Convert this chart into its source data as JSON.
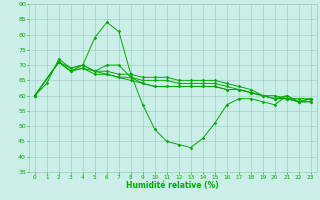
{
  "background_color": "#cceee8",
  "grid_color": "#99ccbb",
  "line_color": "#00aa00",
  "xlabel": "Humidité relative (%)",
  "xlabel_color": "#00aa00",
  "ylim": [
    35,
    90
  ],
  "xlim": [
    -0.5,
    23.5
  ],
  "yticks": [
    35,
    40,
    45,
    50,
    55,
    60,
    65,
    70,
    75,
    80,
    85,
    90
  ],
  "xticks": [
    0,
    1,
    2,
    3,
    4,
    5,
    6,
    7,
    8,
    9,
    10,
    11,
    12,
    13,
    14,
    15,
    16,
    17,
    18,
    19,
    20,
    21,
    22,
    23
  ],
  "line1": {
    "x": [
      0,
      1,
      2,
      3,
      4,
      5,
      6,
      7,
      8,
      9,
      10,
      11,
      12,
      13,
      14,
      15,
      16,
      17,
      18,
      19,
      20,
      21,
      22,
      23
    ],
    "y": [
      60,
      64,
      72,
      69,
      70,
      79,
      84,
      81,
      67,
      57,
      49,
      45,
      44,
      43,
      46,
      51,
      57,
      59,
      59,
      58,
      57,
      60,
      58,
      59
    ]
  },
  "line2": {
    "x": [
      0,
      2,
      3,
      4,
      5,
      6,
      7,
      8,
      9,
      10,
      11,
      12,
      13,
      14,
      15,
      16,
      17,
      18,
      19,
      20,
      21,
      22,
      23
    ],
    "y": [
      60,
      71,
      69,
      70,
      68,
      70,
      70,
      66,
      64,
      63,
      63,
      63,
      63,
      63,
      63,
      62,
      62,
      61,
      60,
      60,
      59,
      59,
      59
    ]
  },
  "line3": {
    "x": [
      0,
      2,
      3,
      4,
      5,
      6,
      7,
      8,
      9,
      10,
      11,
      12,
      13,
      14,
      15,
      16,
      17,
      18,
      19,
      20,
      21,
      22,
      23
    ],
    "y": [
      60,
      71,
      68,
      70,
      68,
      68,
      67,
      67,
      66,
      66,
      66,
      65,
      65,
      65,
      65,
      64,
      63,
      62,
      60,
      59,
      60,
      58,
      59
    ]
  },
  "line4": {
    "x": [
      0,
      2,
      3,
      4,
      5,
      6,
      7,
      8,
      9,
      10,
      11,
      12,
      13,
      14,
      15,
      16,
      17,
      18,
      19,
      20,
      21,
      22,
      23
    ],
    "y": [
      60,
      71,
      68,
      69,
      68,
      67,
      66,
      66,
      65,
      65,
      65,
      64,
      64,
      64,
      64,
      63,
      62,
      61,
      60,
      59,
      59,
      58,
      58
    ]
  },
  "line5": {
    "x": [
      0,
      2,
      3,
      4,
      5,
      6,
      7,
      8,
      9,
      10,
      11,
      12,
      13,
      14,
      15,
      16,
      17,
      18,
      19,
      20,
      21,
      22,
      23
    ],
    "y": [
      60,
      71,
      68,
      69,
      67,
      67,
      66,
      65,
      64,
      63,
      63,
      63,
      63,
      63,
      63,
      62,
      62,
      61,
      60,
      59,
      59,
      58,
      58
    ]
  }
}
